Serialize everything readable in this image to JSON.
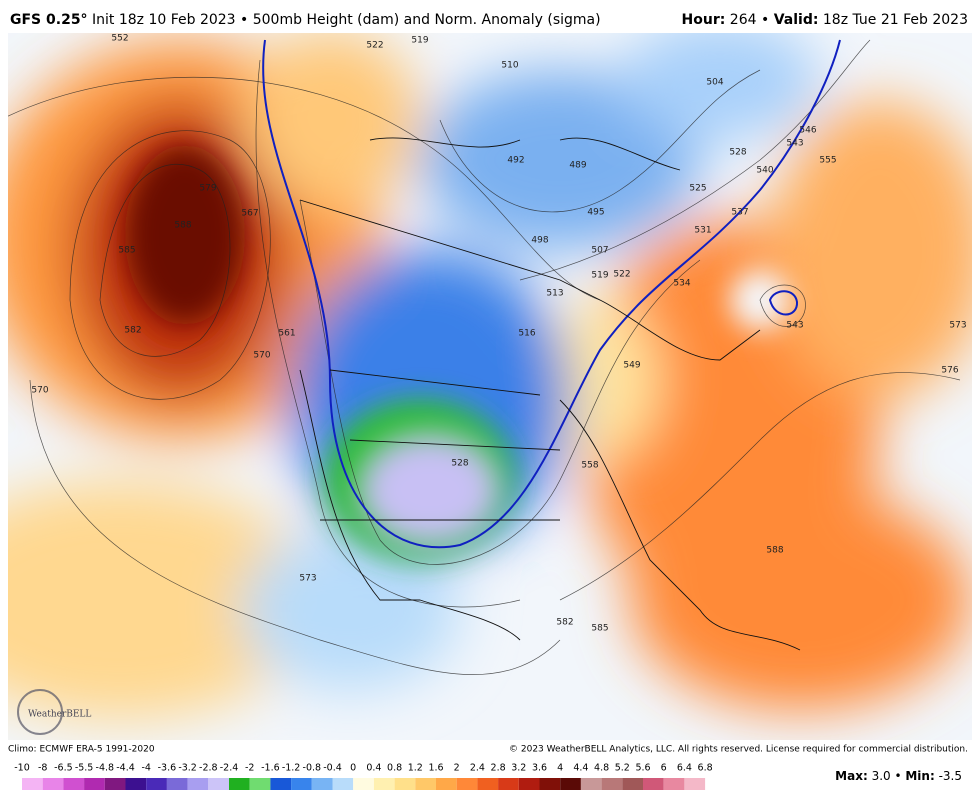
{
  "header": {
    "left": [
      {
        "text": "GFS 0.25°",
        "bold": true
      },
      {
        "text": " Init 18z 10 Feb 2023 • 500mb Height (dam) and Norm. Anomaly (sigma)",
        "bold": false
      }
    ],
    "right": [
      {
        "text": "Hour:",
        "bold": true
      },
      {
        "text": " 264 • ",
        "bold": false
      },
      {
        "text": "Valid:",
        "bold": true
      },
      {
        "text": " 18z Tue 21 Feb 2023",
        "bold": false
      }
    ]
  },
  "map": {
    "contour_labels": [
      "552",
      "519",
      "522",
      "510",
      "504",
      "579",
      "588",
      "567",
      "585",
      "582",
      "570",
      "561",
      "492",
      "489",
      "495",
      "498",
      "507",
      "513",
      "516",
      "519",
      "522",
      "525",
      "528",
      "531",
      "534",
      "537",
      "540",
      "543",
      "546",
      "549",
      "555",
      "573",
      "576",
      "570",
      "528",
      "558",
      "573",
      "582",
      "585",
      "588",
      "543"
    ],
    "logo": "WeatherBELL"
  },
  "footer": {
    "climo": "Climo: ECMWF ERA-5 1991-2020",
    "copyright": "© 2023 WeatherBELL Analytics, LLC. All rights reserved. License required for commercial distribution.",
    "stats": [
      {
        "text": "Max:",
        "bold": true
      },
      {
        "text": " 3.0 • ",
        "bold": false
      },
      {
        "text": "Min:",
        "bold": true
      },
      {
        "text": " -3.5",
        "bold": false
      }
    ]
  },
  "colorbar": {
    "ticks": [
      -10,
      -8,
      -6.5,
      -5.5,
      -4.8,
      -4.4,
      -4,
      -3.6,
      -3.2,
      -2.8,
      -2.4,
      -2,
      -1.6,
      -1.2,
      -0.8,
      -0.4,
      0,
      0.4,
      0.8,
      1.2,
      1.6,
      2,
      2.4,
      2.8,
      3.2,
      3.6,
      4,
      4.4,
      4.8,
      5.2,
      5.6,
      6,
      6.4,
      6.8
    ],
    "colors": [
      "#f4b4f4",
      "#e884e8",
      "#d050d0",
      "#b02ab0",
      "#801880",
      "#3c1090",
      "#4a2ab8",
      "#7a6ad8",
      "#a89ef0",
      "#ccc4f8",
      "#20b020",
      "#70dc70",
      "#1858d8",
      "#3884ec",
      "#78b4f4",
      "#b8dcfa",
      "#fffbe0",
      "#fff0b0",
      "#ffe08a",
      "#ffc868",
      "#ffa848",
      "#ff8838",
      "#f06020",
      "#d83a18",
      "#b01c10",
      "#801008",
      "#5a0a06",
      "#c89898",
      "#b87878",
      "#a05858",
      "#d05878",
      "#e888a0",
      "#f4b8c8"
    ]
  }
}
